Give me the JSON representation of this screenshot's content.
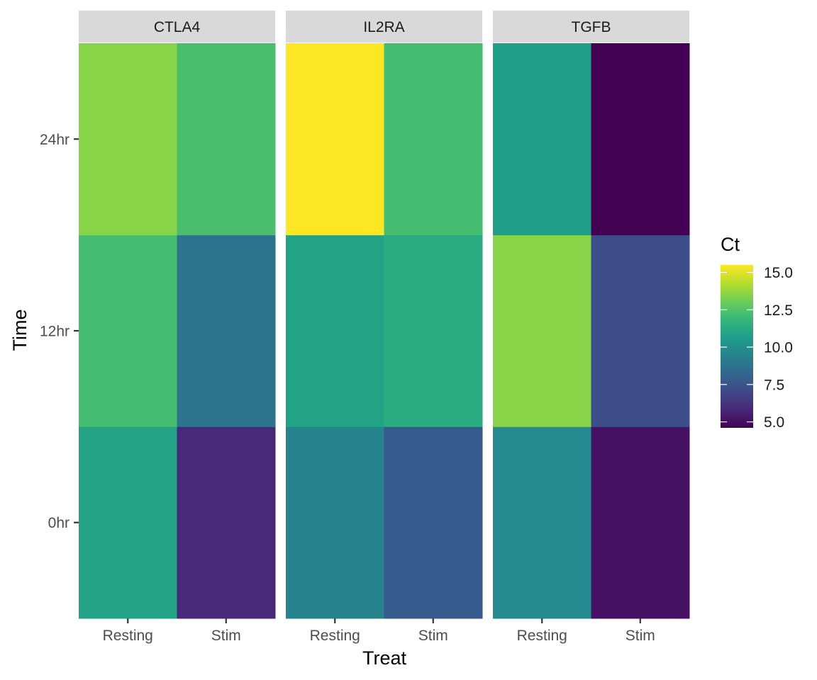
{
  "chart_data": {
    "type": "heatmap",
    "xlabel": "Treat",
    "ylabel": "Time",
    "x_categories": [
      "Resting",
      "Stim"
    ],
    "y_categories": [
      "0hr",
      "12hr",
      "24hr"
    ],
    "facets": [
      {
        "name": "CTLA4",
        "cells": [
          {
            "x": "Resting",
            "y": "0hr",
            "value": 10.9
          },
          {
            "x": "Stim",
            "y": "0hr",
            "value": 5.8
          },
          {
            "x": "Resting",
            "y": "12hr",
            "value": 12.2
          },
          {
            "x": "Stim",
            "y": "12hr",
            "value": 8.8
          },
          {
            "x": "Resting",
            "y": "24hr",
            "value": 13.5
          },
          {
            "x": "Stim",
            "y": "24hr",
            "value": 12.3
          }
        ]
      },
      {
        "name": "IL2RA",
        "cells": [
          {
            "x": "Resting",
            "y": "0hr",
            "value": 9.5
          },
          {
            "x": "Stim",
            "y": "0hr",
            "value": 7.7
          },
          {
            "x": "Resting",
            "y": "12hr",
            "value": 10.9
          },
          {
            "x": "Stim",
            "y": "12hr",
            "value": 11.3
          },
          {
            "x": "Resting",
            "y": "24hr",
            "value": 15.5
          },
          {
            "x": "Stim",
            "y": "24hr",
            "value": 12.2
          }
        ]
      },
      {
        "name": "TGFB",
        "cells": [
          {
            "x": "Resting",
            "y": "0hr",
            "value": 9.8
          },
          {
            "x": "Stim",
            "y": "0hr",
            "value": 5.1
          },
          {
            "x": "Resting",
            "y": "12hr",
            "value": 13.5
          },
          {
            "x": "Stim",
            "y": "12hr",
            "value": 7.2
          },
          {
            "x": "Resting",
            "y": "24hr",
            "value": 10.7
          },
          {
            "x": "Stim",
            "y": "24hr",
            "value": 4.6
          }
        ]
      }
    ],
    "legend": {
      "title": "Ct",
      "position": "right",
      "breaks": [
        5.0,
        7.5,
        10.0,
        12.5,
        15.0
      ],
      "break_labels": [
        "5.0",
        "7.5",
        "10.0",
        "12.5",
        "15.0"
      ],
      "range": [
        4.6,
        15.5
      ],
      "colormap": "viridis"
    },
    "colors": {
      "strip_background": "#d9d9d9",
      "viridis_stops": [
        "#440154",
        "#482878",
        "#3e4989",
        "#31688e",
        "#26828e",
        "#1f9e89",
        "#35b779",
        "#6ece58",
        "#b5de2b",
        "#fde725"
      ]
    }
  }
}
